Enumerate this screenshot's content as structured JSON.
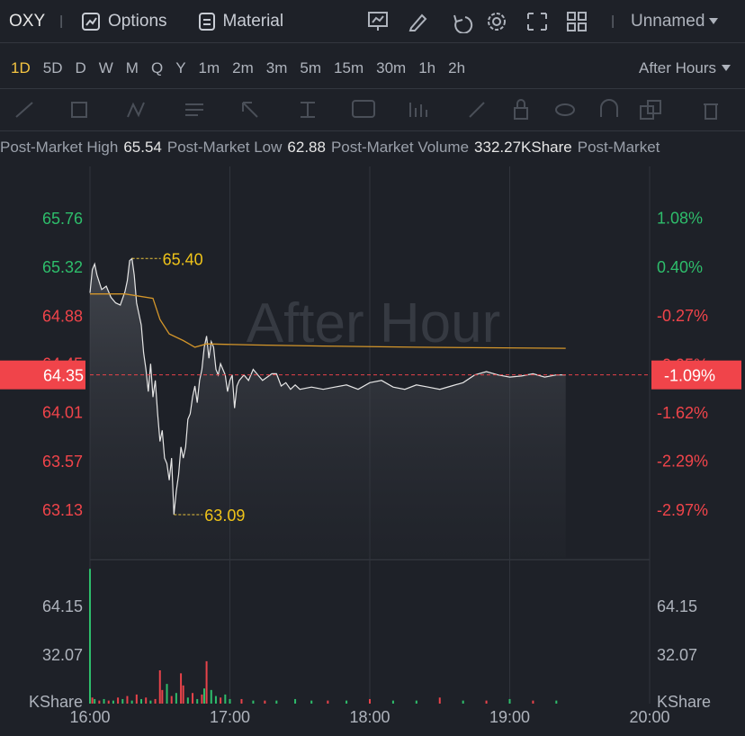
{
  "header": {
    "symbol": "OXY",
    "separator": "|",
    "options": "Options",
    "material": "Material",
    "layout": "Unnamed"
  },
  "periods": [
    "1D",
    "5D",
    "D",
    "W",
    "M",
    "Q",
    "Y",
    "1m",
    "2m",
    "3m",
    "5m",
    "15m",
    "30m",
    "1h",
    "2h"
  ],
  "session": "After Hours",
  "stats": [
    {
      "label": "Post-Market High",
      "value": "65.54"
    },
    {
      "label": "Post-Market Low",
      "value": "62.88"
    },
    {
      "label": "Post-Market Volume",
      "value": "332.27KShare"
    },
    {
      "label": "Post-Market"
    }
  ],
  "chart_data": {
    "type": "line",
    "watermark": "After Hour",
    "grid": true,
    "up_color": "#2ebd6b",
    "down_color": "#f0444a",
    "xlim": [
      960,
      1200
    ],
    "xticks": [
      {
        "value": 960,
        "label": "16:00"
      },
      {
        "value": 1020,
        "label": "17:00"
      },
      {
        "value": 1080,
        "label": "18:00"
      },
      {
        "value": 1140,
        "label": "19:00"
      },
      {
        "value": 1200,
        "label": "20:00"
      }
    ],
    "ylim": [
      62.7,
      66.23
    ],
    "yticks": [
      63.13,
      63.57,
      64.01,
      64.45,
      64.88,
      65.32,
      65.76
    ],
    "y2lim": [
      -3.63,
      1.8
    ],
    "y2ticks": [
      {
        "value": -2.97,
        "label": "-2.97%"
      },
      {
        "value": -2.29,
        "label": "-2.29%"
      },
      {
        "value": -1.62,
        "label": "-1.62%"
      },
      {
        "value": -0.95,
        "label": "-0.95%"
      },
      {
        "value": -0.27,
        "label": "-0.27%"
      },
      {
        "value": 0.4,
        "label": "0.40%"
      },
      {
        "value": 1.08,
        "label": "1.08%"
      }
    ],
    "series": [
      {
        "color": "#e6e6e6",
        "x": [
          960,
          961,
          962,
          963,
          965,
          967,
          969,
          971,
          973,
          975,
          976,
          977,
          978,
          979,
          980,
          981,
          982,
          983,
          984,
          985,
          986,
          987,
          988,
          989,
          990,
          991,
          992,
          993,
          994,
          995,
          996,
          997,
          998,
          999,
          1000,
          1001,
          1002,
          1003,
          1004,
          1005,
          1006,
          1007,
          1008,
          1009,
          1010,
          1011,
          1012,
          1013,
          1014,
          1015,
          1016,
          1017,
          1018,
          1019,
          1020,
          1021,
          1022,
          1023,
          1024,
          1026,
          1028,
          1030,
          1032,
          1034,
          1036,
          1038,
          1040,
          1042,
          1044,
          1046,
          1048,
          1050,
          1055,
          1060,
          1065,
          1070,
          1075,
          1080,
          1085,
          1090,
          1095,
          1100,
          1105,
          1110,
          1115,
          1120,
          1125,
          1130,
          1135,
          1140,
          1145,
          1150,
          1155,
          1160,
          1164
        ],
        "values": [
          65.09,
          65.3,
          65.35,
          65.25,
          65.12,
          65.15,
          65.05,
          65.0,
          64.98,
          65.1,
          65.2,
          65.38,
          65.4,
          65.25,
          65.0,
          64.9,
          64.8,
          64.55,
          64.4,
          64.2,
          64.45,
          64.15,
          64.3,
          64.0,
          63.75,
          63.85,
          63.6,
          63.55,
          63.4,
          63.6,
          63.09,
          63.3,
          63.45,
          63.7,
          63.6,
          63.7,
          63.95,
          64.0,
          64.15,
          64.25,
          64.1,
          64.3,
          64.4,
          64.6,
          64.7,
          64.5,
          64.65,
          64.6,
          64.4,
          64.35,
          64.45,
          64.4,
          64.35,
          64.2,
          64.3,
          64.35,
          64.05,
          64.25,
          64.3,
          64.35,
          64.3,
          64.4,
          64.35,
          64.3,
          64.33,
          64.36,
          64.36,
          64.25,
          64.28,
          64.22,
          64.26,
          64.22,
          64.24,
          64.22,
          64.24,
          64.26,
          64.22,
          64.28,
          64.3,
          64.24,
          64.22,
          64.26,
          64.24,
          64.22,
          64.25,
          64.28,
          64.35,
          64.38,
          64.35,
          64.33,
          64.34,
          64.36,
          64.33,
          64.35,
          64.35
        ]
      },
      {
        "color": "#d4962a",
        "x": [
          960,
          975,
          987,
          990,
          994,
          1000,
          1005,
          1010,
          1030,
          1060,
          1100,
          1164
        ],
        "values": [
          65.08,
          65.08,
          65.04,
          64.85,
          64.72,
          64.66,
          64.6,
          64.63,
          64.62,
          64.61,
          64.6,
          64.59
        ]
      }
    ],
    "last": {
      "value": 64.35,
      "change": {
        "value": -1.09,
        "label": "-1.09%"
      }
    },
    "annotations": [
      {
        "x": 978,
        "value": {
          "value": 65.4,
          "label": "65.40"
        }
      },
      {
        "x": 996,
        "value": 63.09
      }
    ],
    "volume": {
      "unit": "KShare",
      "ylim": [
        0,
        93.3
      ],
      "yticks": [
        32.07,
        64.15
      ],
      "x": [
        960,
        961,
        962,
        964,
        966,
        968,
        970,
        972,
        974,
        976,
        978,
        980,
        982,
        984,
        986,
        988,
        990,
        991,
        993,
        995,
        997,
        999,
        1000,
        1002,
        1004,
        1006,
        1008,
        1009,
        1010,
        1012,
        1014,
        1016,
        1018,
        1020,
        1025,
        1030,
        1035,
        1040,
        1048,
        1055,
        1062,
        1070,
        1080,
        1090,
        1100,
        1110,
        1120,
        1130,
        1140,
        1150,
        1160
      ],
      "values": [
        89,
        4,
        3,
        2,
        3,
        2,
        2,
        4,
        3,
        5,
        2,
        6,
        3,
        4,
        2,
        3,
        22,
        9,
        13,
        5,
        7,
        20,
        12,
        4,
        7,
        3,
        6,
        10,
        28,
        9,
        5,
        4,
        6,
        3,
        3,
        2,
        2,
        2,
        3,
        2,
        2,
        2,
        3,
        2,
        2,
        4,
        2,
        2,
        3,
        2,
        2
      ],
      "colors": [
        "#2ebd6b",
        "#e8434a",
        "#2ebd6b",
        "#e8434a",
        "#2ebd6b",
        "#e8434a",
        "#2ebd6b",
        "#e8434a",
        "#2ebd6b",
        "#e8434a",
        "#2ebd6b",
        "#e8434a",
        "#2ebd6b",
        "#e8434a",
        "#2ebd6b",
        "#e8434a",
        "#e8434a",
        "#e8434a",
        "#2ebd6b",
        "#e8434a",
        "#2ebd6b",
        "#e8434a",
        "#e8434a",
        "#2ebd6b",
        "#e8434a",
        "#2ebd6b",
        "#e8434a",
        "#2ebd6b",
        "#e8434a",
        "#2ebd6b",
        "#2ebd6b",
        "#e8434a",
        "#2ebd6b",
        "#2ebd6b",
        "#e8434a",
        "#2ebd6b",
        "#e8434a",
        "#2ebd6b",
        "#2ebd6b",
        "#2ebd6b",
        "#e8434a",
        "#2ebd6b",
        "#e8434a",
        "#2ebd6b",
        "#2ebd6b",
        "#e8434a",
        "#2ebd6b",
        "#e8434a",
        "#2ebd6b",
        "#e8434a",
        "#2ebd6b"
      ]
    }
  }
}
